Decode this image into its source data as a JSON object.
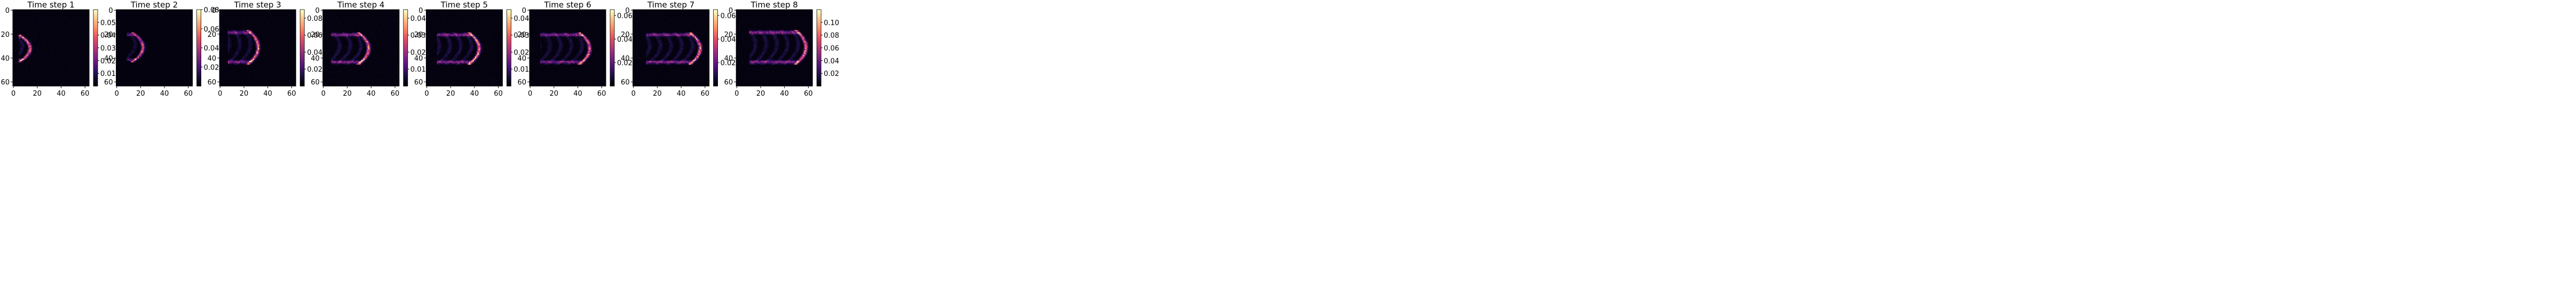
{
  "figure": {
    "colormap": "magma"
  },
  "chart_data": [
    {
      "type": "heatmap",
      "title": "Time step 1",
      "xlim": [
        0,
        63
      ],
      "ylim": [
        63,
        0
      ],
      "x_ticks": [
        "0",
        "20",
        "40",
        "60"
      ],
      "y_ticks": [
        "0",
        "20",
        "40",
        "60"
      ],
      "colorbar": {
        "ticks": [
          "0.01",
          "0.02",
          "0.03",
          "0.04",
          "0.05"
        ]
      },
      "structure": {
        "front_x": 14,
        "spread": 10,
        "band_y": [
          22,
          42
        ],
        "peak": 0.055,
        "max": 0.06
      }
    },
    {
      "type": "heatmap",
      "title": "Time step 2",
      "xlim": [
        0,
        63
      ],
      "ylim": [
        63,
        0
      ],
      "x_ticks": [
        "0",
        "20",
        "40",
        "60"
      ],
      "y_ticks": [
        "0",
        "20",
        "40",
        "60"
      ],
      "colorbar": {
        "ticks": [
          "0.02",
          "0.04",
          "0.06",
          "0.08"
        ]
      },
      "structure": {
        "front_x": 22,
        "spread": 14,
        "band_y": [
          20,
          42
        ],
        "peak": 0.06,
        "max": 0.08
      }
    },
    {
      "type": "heatmap",
      "title": "Time step 3",
      "xlim": [
        0,
        63
      ],
      "ylim": [
        63,
        0
      ],
      "x_ticks": [
        "0",
        "20",
        "40",
        "60"
      ],
      "y_ticks": [
        "0",
        "20",
        "40",
        "60"
      ],
      "colorbar": {
        "ticks": [
          "0.02",
          "0.04",
          "0.06",
          "0.08"
        ]
      },
      "structure": {
        "front_x": 32,
        "spread": 26,
        "band_y": [
          18,
          44
        ],
        "peak": 0.08,
        "max": 0.09
      }
    },
    {
      "type": "heatmap",
      "title": "Time step 4",
      "xlim": [
        0,
        63
      ],
      "ylim": [
        63,
        0
      ],
      "x_ticks": [
        "0",
        "20",
        "40",
        "60"
      ],
      "y_ticks": [
        "0",
        "20",
        "40",
        "60"
      ],
      "colorbar": {
        "ticks": [
          "0.01",
          "0.02",
          "0.03",
          "0.04"
        ]
      },
      "structure": {
        "front_x": 38,
        "spread": 32,
        "band_y": [
          20,
          44
        ],
        "peak": 0.043,
        "max": 0.045
      }
    },
    {
      "type": "heatmap",
      "title": "Time step 5",
      "xlim": [
        0,
        63
      ],
      "ylim": [
        63,
        0
      ],
      "x_ticks": [
        "0",
        "20",
        "40",
        "60"
      ],
      "y_ticks": [
        "0",
        "20",
        "40",
        "60"
      ],
      "colorbar": {
        "ticks": [
          "0.01",
          "0.02",
          "0.03",
          "0.04"
        ]
      },
      "structure": {
        "front_x": 44,
        "spread": 36,
        "band_y": [
          20,
          44
        ],
        "peak": 0.043,
        "max": 0.045
      }
    },
    {
      "type": "heatmap",
      "title": "Time step 6",
      "xlim": [
        0,
        63
      ],
      "ylim": [
        63,
        0
      ],
      "x_ticks": [
        "0",
        "20",
        "40",
        "60"
      ],
      "y_ticks": [
        "0",
        "20",
        "40",
        "60"
      ],
      "colorbar": {
        "ticks": [
          "0.02",
          "0.04",
          "0.06"
        ]
      },
      "structure": {
        "front_x": 50,
        "spread": 42,
        "band_y": [
          20,
          44
        ],
        "peak": 0.058,
        "max": 0.065
      }
    },
    {
      "type": "heatmap",
      "title": "Time step 7",
      "xlim": [
        0,
        63
      ],
      "ylim": [
        63,
        0
      ],
      "x_ticks": [
        "0",
        "20",
        "40",
        "60"
      ],
      "y_ticks": [
        "0",
        "20",
        "40",
        "60"
      ],
      "colorbar": {
        "ticks": [
          "0.02",
          "0.04",
          "0.06"
        ]
      },
      "structure": {
        "front_x": 56,
        "spread": 46,
        "band_y": [
          20,
          44
        ],
        "peak": 0.06,
        "max": 0.065
      }
    },
    {
      "type": "heatmap",
      "title": "Time step 8",
      "xlim": [
        0,
        63
      ],
      "ylim": [
        63,
        0
      ],
      "x_ticks": [
        "0",
        "20",
        "40",
        "60"
      ],
      "y_ticks": [
        "0",
        "20",
        "40",
        "60"
      ],
      "colorbar": {
        "ticks": [
          "0.02",
          "0.04",
          "0.06",
          "0.08",
          "0.10"
        ]
      },
      "structure": {
        "front_x": 58,
        "spread": 48,
        "band_y": [
          18,
          44
        ],
        "peak": 0.11,
        "max": 0.12
      }
    }
  ]
}
